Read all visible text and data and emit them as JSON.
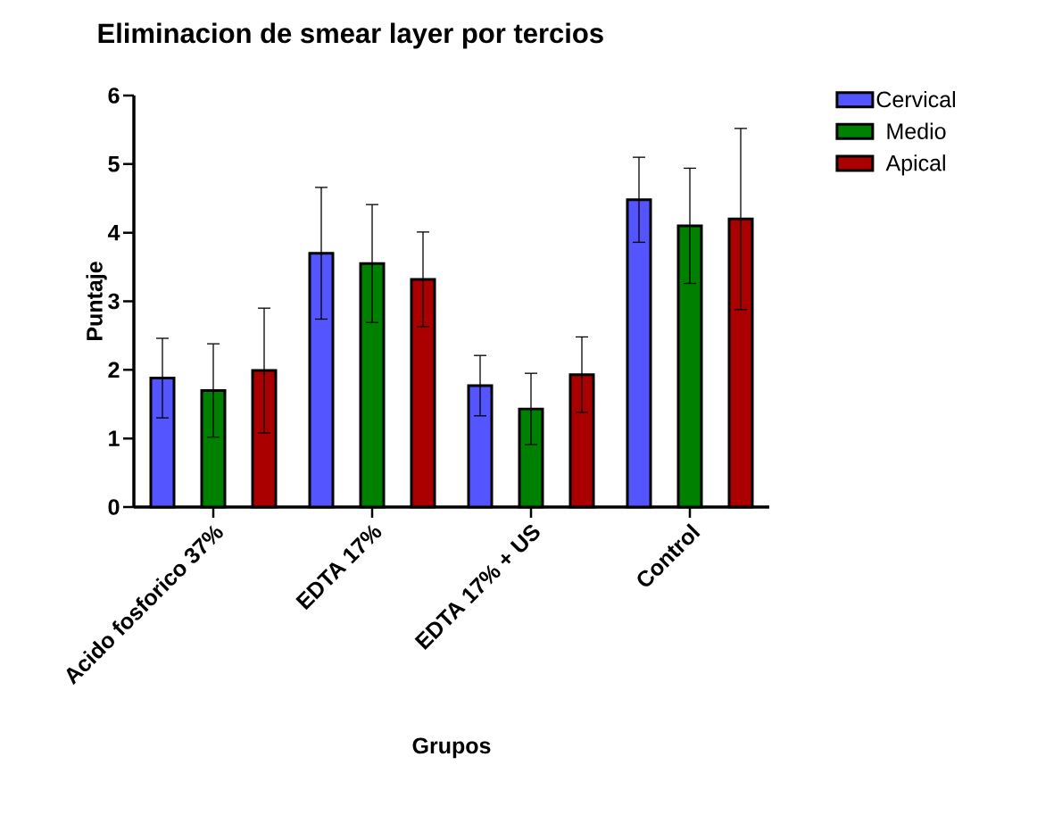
{
  "chart_data": {
    "type": "bar",
    "title": "Eliminacion de smear layer por tercios",
    "xlabel": "Grupos",
    "ylabel": "Puntaje",
    "categories": [
      "Acido fosforico 37%",
      "EDTA 17%",
      "EDTA 17% + US",
      "Control"
    ],
    "series": [
      {
        "name": "Cervical",
        "color": "#5555ff",
        "values": [
          1.88,
          3.7,
          1.77,
          4.48
        ],
        "errors": [
          0.58,
          0.96,
          0.44,
          0.62
        ]
      },
      {
        "name": "Medio",
        "color": "#008000",
        "values": [
          1.7,
          3.55,
          1.43,
          4.1
        ],
        "errors": [
          0.68,
          0.86,
          0.52,
          0.84
        ]
      },
      {
        "name": "Apical",
        "color": "#aa0000",
        "values": [
          1.99,
          3.32,
          1.93,
          4.2
        ],
        "errors": [
          0.91,
          0.69,
          0.55,
          1.32
        ]
      }
    ],
    "ylim": [
      0,
      6
    ],
    "yticks": [
      0,
      1,
      2,
      3,
      4,
      5,
      6
    ],
    "grid": false,
    "legend": "right"
  }
}
